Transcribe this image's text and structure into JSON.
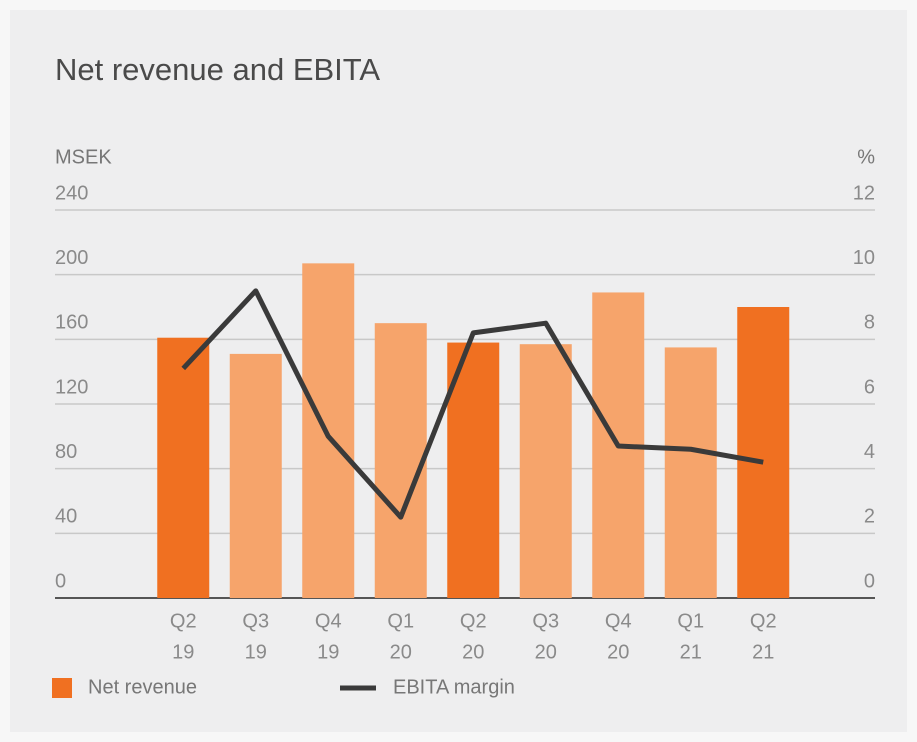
{
  "chart_data": {
    "type": "bar_line",
    "title": "Net revenue and EBITA",
    "y_label": "MSEK",
    "y2_label": "%",
    "categories": [
      [
        "Q2",
        "19"
      ],
      [
        "Q3",
        "19"
      ],
      [
        "Q4",
        "19"
      ],
      [
        "Q1",
        "20"
      ],
      [
        "Q2",
        "20"
      ],
      [
        "Q3",
        "20"
      ],
      [
        "Q4",
        "20"
      ],
      [
        "Q1",
        "21"
      ],
      [
        "Q2",
        "21"
      ]
    ],
    "series": [
      {
        "name": "Net revenue",
        "type": "bar",
        "color": "#f07021",
        "bar_colors": [
          "#f07021",
          "#f6a46b",
          "#f6a46b",
          "#f6a46b",
          "#f07021",
          "#f6a46b",
          "#f6a46b",
          "#f6a46b",
          "#f07021"
        ],
        "values": [
          161,
          151,
          207,
          170,
          158,
          157,
          189,
          155,
          180
        ]
      },
      {
        "name": "EBITA margin",
        "type": "line",
        "axis": "y2",
        "color": "#3a3a3a",
        "values": [
          7.1,
          9.5,
          5.0,
          2.5,
          8.2,
          8.5,
          4.7,
          4.6,
          4.2
        ]
      }
    ],
    "ylim": [
      0,
      240
    ],
    "yticks": [
      0,
      40,
      80,
      120,
      160,
      200,
      240
    ],
    "y2lim": [
      0,
      12
    ],
    "y2ticks": [
      0,
      2,
      4,
      6,
      8,
      10,
      12
    ],
    "grid": true
  }
}
